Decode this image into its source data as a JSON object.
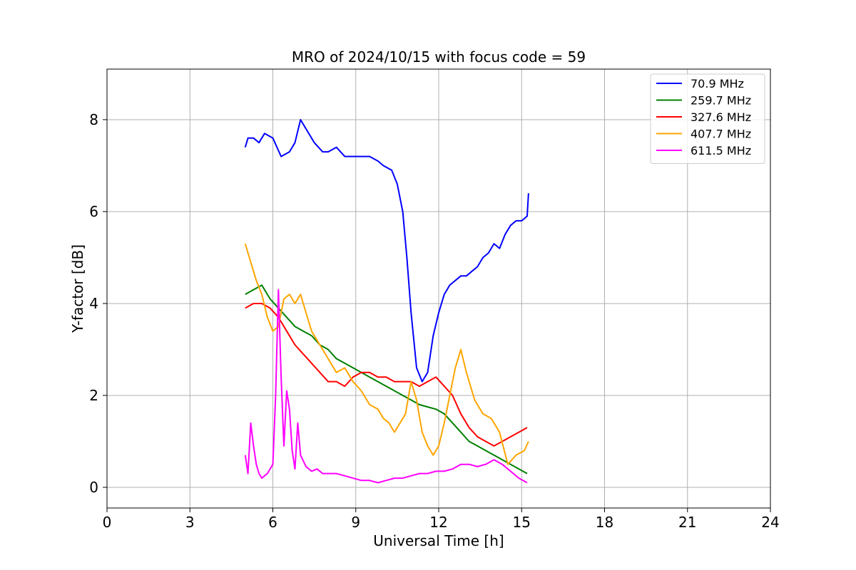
{
  "chart_data": {
    "type": "line",
    "title": "MRO of 2024/10/15 with focus code = 59",
    "xlabel": "Universal Time [h]",
    "ylabel": "Y-factor [dB]",
    "xlim": [
      0,
      24
    ],
    "ylim": [
      -0.45,
      9.1
    ],
    "xticks": [
      0,
      3,
      6,
      9,
      12,
      15,
      18,
      21,
      24
    ],
    "yticks": [
      0,
      2,
      4,
      6,
      8
    ],
    "grid": true,
    "legend_position": "top-right",
    "series": [
      {
        "name": " 70.9 MHz",
        "color": "#0000ff",
        "x": [
          5.0,
          5.1,
          5.3,
          5.5,
          5.7,
          6.0,
          6.3,
          6.6,
          6.8,
          7.0,
          7.2,
          7.5,
          7.8,
          8.0,
          8.3,
          8.6,
          8.9,
          9.2,
          9.5,
          9.8,
          10.0,
          10.3,
          10.5,
          10.7,
          10.85,
          11.0,
          11.2,
          11.4,
          11.6,
          11.8,
          12.0,
          12.2,
          12.4,
          12.6,
          12.8,
          13.0,
          13.2,
          13.4,
          13.6,
          13.8,
          14.0,
          14.2,
          14.4,
          14.6,
          14.8,
          15.0,
          15.2,
          15.25
        ],
        "y": [
          7.4,
          7.6,
          7.6,
          7.5,
          7.7,
          7.6,
          7.2,
          7.3,
          7.5,
          8.0,
          7.8,
          7.5,
          7.3,
          7.3,
          7.4,
          7.2,
          7.2,
          7.2,
          7.2,
          7.1,
          7.0,
          6.9,
          6.6,
          6.0,
          5.0,
          3.8,
          2.6,
          2.3,
          2.5,
          3.3,
          3.8,
          4.2,
          4.4,
          4.5,
          4.6,
          4.6,
          4.7,
          4.8,
          5.0,
          5.1,
          5.3,
          5.2,
          5.5,
          5.7,
          5.8,
          5.8,
          5.9,
          6.4
        ]
      },
      {
        "name": " 259.7 MHz",
        "color": "#008000",
        "x": [
          5.0,
          5.3,
          5.6,
          5.9,
          6.2,
          6.5,
          6.8,
          7.1,
          7.4,
          7.7,
          8.0,
          8.3,
          8.6,
          8.9,
          9.2,
          9.5,
          9.8,
          10.1,
          10.4,
          10.7,
          11.0,
          11.3,
          11.6,
          11.9,
          12.2,
          12.5,
          12.8,
          13.1,
          13.4,
          13.7,
          14.0,
          14.3,
          14.6,
          14.9,
          15.2
        ],
        "y": [
          4.2,
          4.3,
          4.4,
          4.1,
          3.9,
          3.7,
          3.5,
          3.4,
          3.3,
          3.1,
          3.0,
          2.8,
          2.7,
          2.6,
          2.5,
          2.4,
          2.3,
          2.2,
          2.1,
          2.0,
          1.9,
          1.8,
          1.75,
          1.7,
          1.6,
          1.4,
          1.2,
          1.0,
          0.9,
          0.8,
          0.7,
          0.6,
          0.5,
          0.4,
          0.3
        ]
      },
      {
        "name": " 327.6 MHz",
        "color": "#ff0000",
        "x": [
          5.0,
          5.3,
          5.6,
          5.9,
          6.2,
          6.5,
          6.8,
          7.1,
          7.4,
          7.7,
          8.0,
          8.3,
          8.6,
          8.9,
          9.2,
          9.5,
          9.8,
          10.1,
          10.4,
          10.7,
          11.0,
          11.3,
          11.6,
          11.9,
          12.2,
          12.5,
          12.8,
          13.1,
          13.4,
          13.7,
          14.0,
          14.3,
          14.6,
          14.9,
          15.2
        ],
        "y": [
          3.9,
          4.0,
          4.0,
          3.9,
          3.7,
          3.4,
          3.1,
          2.9,
          2.7,
          2.5,
          2.3,
          2.3,
          2.2,
          2.4,
          2.5,
          2.5,
          2.4,
          2.4,
          2.3,
          2.3,
          2.3,
          2.2,
          2.3,
          2.4,
          2.2,
          2.0,
          1.6,
          1.3,
          1.1,
          1.0,
          0.9,
          1.0,
          1.1,
          1.2,
          1.3
        ]
      },
      {
        "name": " 407.7 MHz",
        "color": "#ffa500",
        "x": [
          5.0,
          5.2,
          5.4,
          5.6,
          5.8,
          6.0,
          6.2,
          6.4,
          6.6,
          6.8,
          7.0,
          7.2,
          7.4,
          7.7,
          8.0,
          8.3,
          8.6,
          8.9,
          9.2,
          9.5,
          9.8,
          10.0,
          10.2,
          10.4,
          10.6,
          10.8,
          11.0,
          11.2,
          11.4,
          11.6,
          11.8,
          12.0,
          12.2,
          12.4,
          12.6,
          12.8,
          13.0,
          13.3,
          13.6,
          13.9,
          14.2,
          14.5,
          14.8,
          15.1,
          15.25
        ],
        "y": [
          5.3,
          4.9,
          4.5,
          4.2,
          3.7,
          3.4,
          3.5,
          4.1,
          4.2,
          4.0,
          4.2,
          3.8,
          3.4,
          3.1,
          2.8,
          2.5,
          2.6,
          2.3,
          2.1,
          1.8,
          1.7,
          1.5,
          1.4,
          1.2,
          1.4,
          1.6,
          2.3,
          1.9,
          1.2,
          0.9,
          0.7,
          0.9,
          1.4,
          2.0,
          2.6,
          3.0,
          2.5,
          1.9,
          1.6,
          1.5,
          1.2,
          0.5,
          0.7,
          0.8,
          1.0
        ]
      },
      {
        "name": " 611.5 MHz",
        "color": "#ff00ff",
        "x": [
          5.0,
          5.1,
          5.2,
          5.3,
          5.4,
          5.5,
          5.6,
          5.7,
          5.8,
          5.9,
          6.0,
          6.1,
          6.2,
          6.3,
          6.4,
          6.5,
          6.6,
          6.7,
          6.8,
          6.9,
          7.0,
          7.2,
          7.4,
          7.6,
          7.8,
          8.0,
          8.3,
          8.6,
          8.9,
          9.2,
          9.5,
          9.8,
          10.1,
          10.4,
          10.7,
          11.0,
          11.3,
          11.6,
          11.9,
          12.2,
          12.5,
          12.8,
          13.1,
          13.4,
          13.7,
          14.0,
          14.3,
          14.6,
          14.9,
          15.2
        ],
        "y": [
          0.7,
          0.3,
          1.4,
          0.9,
          0.5,
          0.3,
          0.2,
          0.25,
          0.3,
          0.4,
          0.5,
          2.0,
          4.3,
          2.4,
          0.9,
          2.1,
          1.7,
          0.8,
          0.4,
          1.4,
          0.7,
          0.45,
          0.35,
          0.4,
          0.3,
          0.3,
          0.3,
          0.25,
          0.2,
          0.15,
          0.15,
          0.1,
          0.15,
          0.2,
          0.2,
          0.25,
          0.3,
          0.3,
          0.35,
          0.35,
          0.4,
          0.5,
          0.5,
          0.45,
          0.5,
          0.6,
          0.5,
          0.35,
          0.2,
          0.1
        ]
      }
    ]
  }
}
